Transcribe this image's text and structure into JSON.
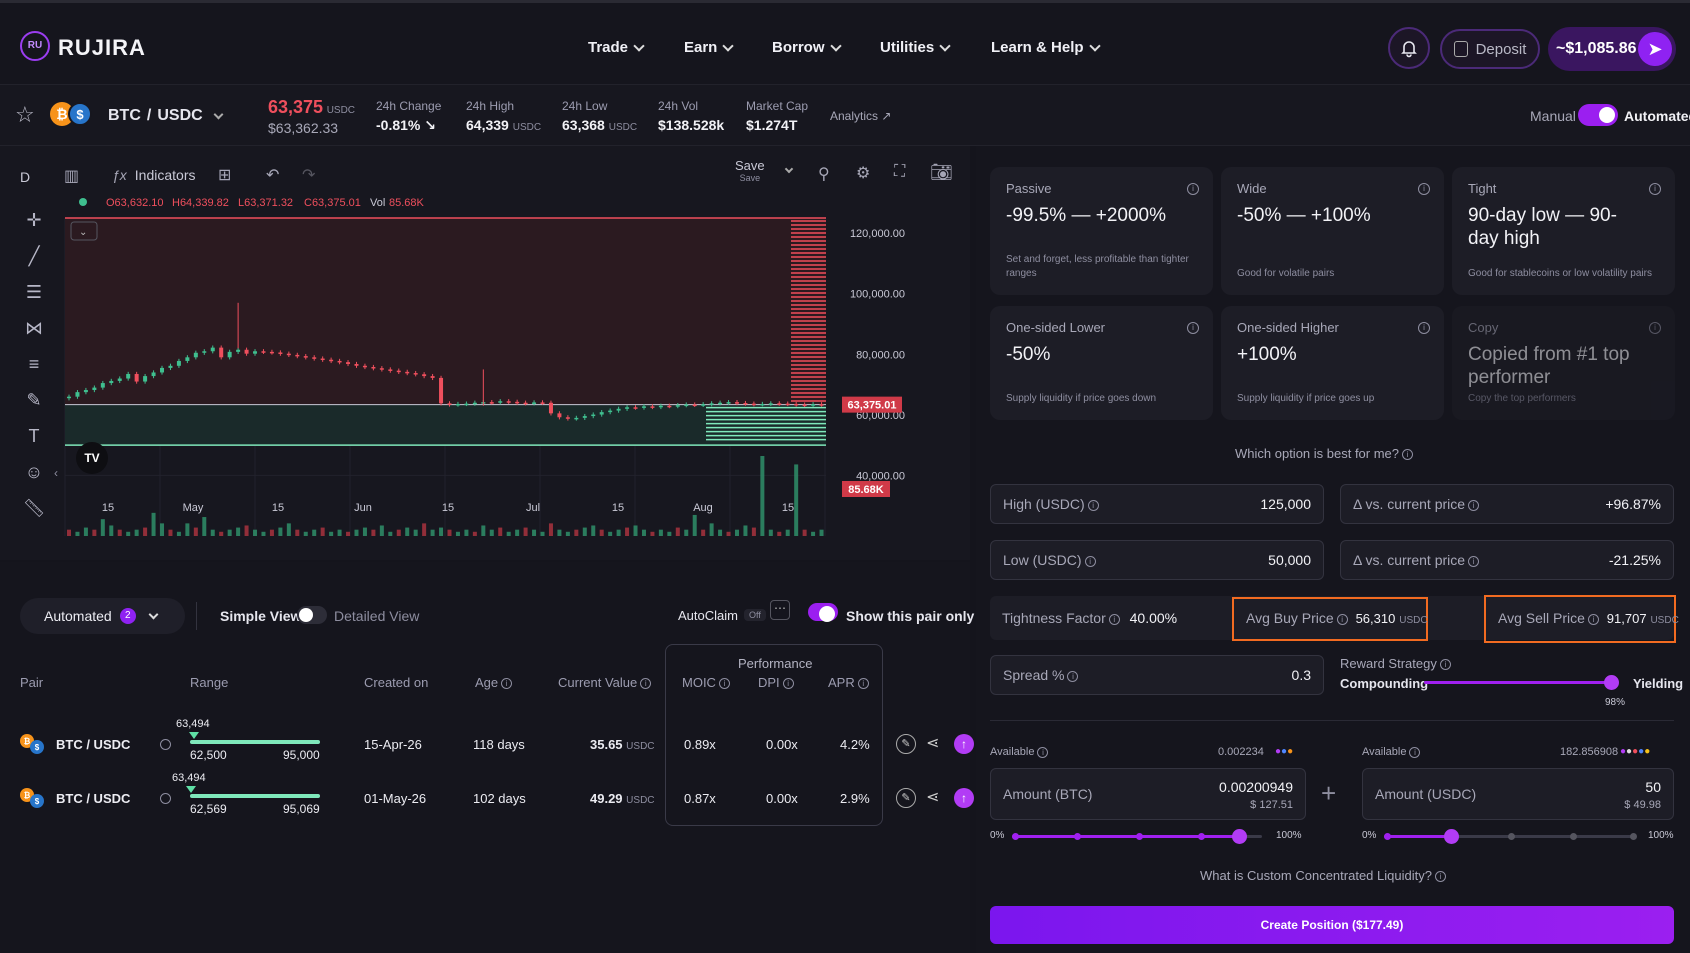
{
  "brand": {
    "name": "RUJIRA"
  },
  "nav": {
    "items": [
      {
        "label": "Trade"
      },
      {
        "label": "Earn"
      },
      {
        "label": "Borrow"
      },
      {
        "label": "Utilities"
      },
      {
        "label": "Learn & Help"
      }
    ],
    "deposit_label": "Deposit",
    "balance": "~$1,085.86"
  },
  "ticker": {
    "pair_base": "BTC",
    "pair_quote": "USDC",
    "price": "63,375",
    "price_unit": "USDC",
    "price_usd": "$63,362.33",
    "change_label": "24h Change",
    "change_value": "-0.81%",
    "high_label": "24h High",
    "high_value": "64,339",
    "high_unit": "USDC",
    "low_label": "24h Low",
    "low_value": "63,368",
    "low_unit": "USDC",
    "vol_label": "24h Vol",
    "vol_value": "$138.528k",
    "mcap_label": "Market Cap",
    "mcap_value": "$1.274T",
    "analytics_label": "Analytics",
    "mode_manual": "Manual",
    "mode_automated": "Automated"
  },
  "chart_toolbar": {
    "interval": "D",
    "indicators_label": "Indicators",
    "save_label": "Save",
    "save_sub": "Save"
  },
  "chart_data": {
    "type": "candlestick",
    "ohlc_text": {
      "o": "O63,632.10",
      "h": "H64,339.82",
      "l": "L63,371.32",
      "c": "C63,375.01",
      "vol_label": "Vol",
      "vol_value": "85.68K"
    },
    "price_axis_ticks": [
      "120,000.00",
      "100,000.00",
      "80,000.00",
      "60,000.00",
      "40,000.00"
    ],
    "price_tag": "63,375.01",
    "volume_tag": "85.68K",
    "x_ticks": [
      "15",
      "May",
      "15",
      "Jun",
      "15",
      "Jul",
      "15",
      "Aug",
      "15"
    ],
    "ylim": [
      20000,
      125000
    ],
    "range_high": 125000,
    "range_low": 50000,
    "closes": [
      66000,
      67500,
      68200,
      69000,
      70500,
      71200,
      72000,
      73500,
      71000,
      72800,
      74000,
      75500,
      76200,
      77800,
      79000,
      80500,
      81000,
      82200,
      79000,
      80800,
      81500,
      80200,
      81000,
      80800,
      80600,
      80200,
      79800,
      79400,
      79000,
      78600,
      78200,
      77800,
      77400,
      76800,
      76200,
      75800,
      75400,
      75000,
      74600,
      74200,
      73800,
      73400,
      72800,
      72200,
      63800,
      63400,
      63600,
      63700,
      64000,
      64200,
      64100,
      64500,
      64300,
      64000,
      63800,
      64100,
      64000,
      60500,
      59200,
      58800,
      59000,
      59600,
      60100,
      60900,
      61400,
      62000,
      62500,
      62400,
      62800,
      62600,
      63000,
      62900,
      63200,
      63400,
      63300,
      63500,
      63800,
      64000,
      64200,
      63900,
      63700,
      63500,
      63600,
      63800,
      63700,
      63600,
      63400,
      63300,
      63500,
      63375
    ],
    "volumes": [
      3,
      2,
      4,
      3,
      8,
      5,
      3,
      2,
      3,
      4,
      11,
      6,
      3,
      2,
      6,
      4,
      9,
      3,
      2,
      3,
      4,
      5,
      3,
      2,
      3,
      4,
      6,
      3,
      2,
      3,
      4,
      2,
      3,
      2,
      3,
      4,
      3,
      5,
      2,
      3,
      4,
      3,
      6,
      3,
      4,
      3,
      2,
      3,
      2,
      5,
      3,
      4,
      2,
      3,
      4,
      3,
      2,
      6,
      3,
      2,
      3,
      4,
      5,
      3,
      2,
      3,
      4,
      5,
      3,
      2,
      3,
      2,
      4,
      3,
      10,
      3,
      6,
      3,
      2,
      3,
      5,
      4,
      38,
      3,
      2,
      3,
      34,
      3,
      2,
      3
    ]
  },
  "positions": {
    "filter_label": "Automated",
    "filter_count": "2",
    "simple_view": "Simple View",
    "detailed_view": "Detailed View",
    "autoclaim_label": "AutoClaim",
    "autoclaim_state": "Off",
    "show_pair_only": "Show this pair only",
    "performance_label": "Performance",
    "headers": {
      "pair": "Pair",
      "range": "Range",
      "created": "Created on",
      "age": "Age",
      "value": "Current Value",
      "moic": "MOIC",
      "dpi": "DPI",
      "apr": "APR"
    },
    "rows": [
      {
        "pair": "BTC / USDC",
        "marker": "63,494",
        "low": "62,500",
        "high": "95,000",
        "created": "15-Apr-26",
        "age": "118 days",
        "value": "35.65",
        "value_unit": "USDC",
        "moic": "0.89x",
        "dpi": "0.00x",
        "apr": "4.2%"
      },
      {
        "pair": "BTC / USDC",
        "marker": "63,494",
        "low": "62,569",
        "high": "95,069",
        "created": "01-May-26",
        "age": "102 days",
        "value": "49.29",
        "value_unit": "USDC",
        "moic": "0.87x",
        "dpi": "0.00x",
        "apr": "2.9%"
      }
    ]
  },
  "strategies": [
    {
      "title": "Passive",
      "big": "-99.5% — +2000%",
      "desc": "Set and forget, less profitable than tighter ranges"
    },
    {
      "title": "Wide",
      "big": "-50% — +100%",
      "desc": "Good for volatile pairs"
    },
    {
      "title": "Tight",
      "big": "90-day low — 90-day high",
      "desc": "Good for stablecoins or low volatility pairs"
    },
    {
      "title": "One-sided Lower",
      "big": "-50%",
      "desc": "Supply liquidity if price goes down"
    },
    {
      "title": "One-sided Higher",
      "big": "+100%",
      "desc": "Supply liquidity if price goes up"
    },
    {
      "title": "Copy",
      "big": "Copied from #1 top performer",
      "desc": "Copy the top performers"
    }
  ],
  "form": {
    "which_option": "Which option is best for me?",
    "high_label": "High (USDC)",
    "high_value": "125,000",
    "low_label": "Low (USDC)",
    "low_value": "50,000",
    "delta_label": "Δ vs. current price",
    "delta_high": "+96.87%",
    "delta_low": "-21.25%",
    "tightness_label": "Tightness Factor",
    "tightness_value": "40.00%",
    "avg_buy_label": "Avg Buy Price",
    "avg_buy_value": "56,310",
    "avg_buy_unit": "USDC",
    "avg_sell_label": "Avg Sell Price",
    "avg_sell_value": "91,707",
    "avg_sell_unit": "USDC",
    "spread_label": "Spread %",
    "spread_value": "0.3",
    "reward_label": "Reward Strategy",
    "reward_left": "Compounding",
    "reward_right": "Yielding",
    "reward_pct": "98%",
    "available_label": "Available",
    "btc_available": "0.002234",
    "usdc_available": "182.856908",
    "btc_amount_label": "Amount (BTC)",
    "btc_amount": "0.00200949",
    "btc_amount_usd": "$ 127.51",
    "usdc_amount_label": "Amount (USDC)",
    "usdc_amount": "50",
    "usdc_amount_usd": "$ 49.98",
    "pct_min": "0%",
    "pct_max": "100%",
    "custom_ccl": "What is Custom Concentrated Liquidity?",
    "create_button": "Create Position ($177.49)"
  }
}
